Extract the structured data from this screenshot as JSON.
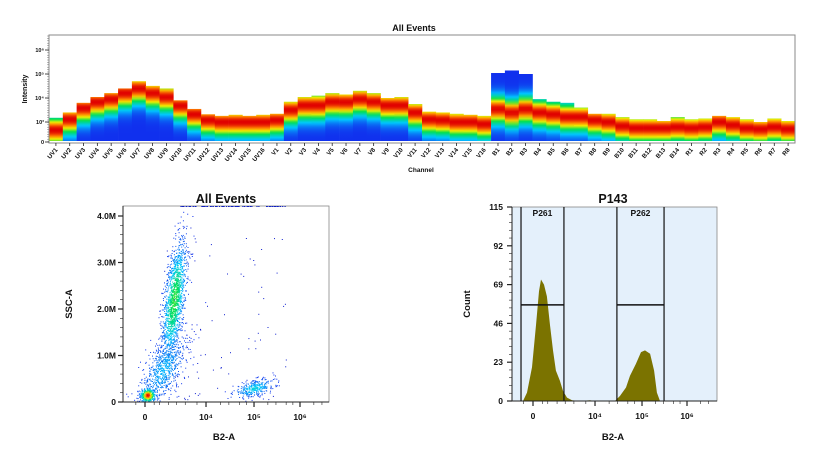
{
  "chart_data": [
    {
      "type": "heatmap",
      "title": "All Events",
      "xlabel": "Channel",
      "ylabel": "Intensity",
      "yscale": "biexponential",
      "ytick_labels": [
        "0",
        "10³",
        "10⁴",
        "10⁵",
        "10⁶"
      ],
      "ytick_values": [
        0,
        1000,
        10000,
        100000,
        1000000
      ],
      "colormap": [
        "#1030ee",
        "#00c8ff",
        "#00e050",
        "#f0f000",
        "#ff8000",
        "#e00000"
      ],
      "channels": [
        "UV1",
        "UV2",
        "UV3",
        "UV4",
        "UV5",
        "UV6",
        "UV7",
        "UV8",
        "UV9",
        "UV10",
        "UV11",
        "UV12",
        "UV13",
        "UV14",
        "UV15",
        "UV16",
        "V1",
        "V2",
        "V3",
        "V4",
        "V5",
        "V6",
        "V7",
        "V8",
        "V9",
        "V10",
        "V11",
        "V12",
        "V13",
        "V14",
        "V15",
        "V16",
        "B1",
        "B2",
        "B3",
        "B4",
        "B5",
        "B6",
        "B7",
        "B8",
        "B9",
        "B10",
        "B11",
        "B12",
        "B13",
        "B14",
        "R1",
        "R2",
        "R3",
        "R4",
        "R5",
        "R6",
        "R7",
        "R8"
      ],
      "max_intensity": [
        1500,
        2500,
        6300,
        11000,
        16000,
        25000,
        50000,
        32000,
        25000,
        8000,
        3500,
        2100,
        1800,
        2000,
        1800,
        2000,
        2200,
        7000,
        11000,
        12500,
        16000,
        14000,
        20000,
        16000,
        10000,
        11000,
        5600,
        2700,
        2500,
        2200,
        2000,
        1800,
        110000,
        140000,
        100000,
        9000,
        7000,
        6300,
        4000,
        2200,
        2200,
        1600,
        1300,
        1300,
        1100,
        1600,
        1300,
        1400,
        1800,
        1600,
        1300,
        1000,
        1400,
        1100
      ],
      "mode_intensity": [
        600,
        1300,
        3800,
        6800,
        9000,
        16000,
        25000,
        16000,
        11000,
        4800,
        2100,
        1200,
        1000,
        1000,
        1000,
        1000,
        1200,
        3200,
        5000,
        5000,
        7000,
        6800,
        9000,
        7000,
        5000,
        5000,
        2500,
        1300,
        1200,
        1000,
        1000,
        900,
        3500,
        2500,
        3500,
        2500,
        2100,
        1650,
        1650,
        1200,
        1000,
        800,
        700,
        700,
        700,
        750,
        700,
        750,
        1000,
        850,
        700,
        650,
        750,
        650
      ]
    },
    {
      "type": "scatter",
      "title": "All Events",
      "xlabel": "B2-A",
      "ylabel": "SSC-A",
      "xscale": "biexponential",
      "xtick_labels": [
        "0",
        "10⁴",
        "10⁵",
        "10⁶"
      ],
      "xtick_values": [
        0,
        10000,
        100000,
        1000000
      ],
      "ytick_labels": [
        "0",
        "1.0M",
        "2.0M",
        "3.0M",
        "4.0M"
      ],
      "ytick_values": [
        0,
        1000000,
        2000000,
        3000000,
        4000000
      ],
      "ylim": [
        0,
        4200000
      ],
      "populations": [
        {
          "b2a": 20,
          "ssc": 150000
        },
        {
          "b2a": 800,
          "ssc": 2200000
        },
        {
          "b2a": 300,
          "ssc": 700000
        },
        {
          "b2a": 100000,
          "ssc": 300000
        }
      ]
    },
    {
      "type": "area",
      "title": "P143",
      "xlabel": "B2-A",
      "ylabel": "Count",
      "xscale": "biexponential",
      "fill_color": "#7b7300",
      "background_color": "#e4f0fb",
      "xtick_labels": [
        "0",
        "10⁴",
        "10⁵",
        "10⁶"
      ],
      "xtick_values": [
        0,
        10000,
        100000,
        1000000
      ],
      "ytick_labels": [
        "0",
        "23",
        "46",
        "69",
        "92",
        "115"
      ],
      "ytick_values": [
        0,
        23,
        46,
        69,
        92,
        115
      ],
      "ylim": [
        0,
        115
      ],
      "points": [
        [
          -110,
          0
        ],
        [
          -56,
          5
        ],
        [
          -8,
          20
        ],
        [
          25,
          45
        ],
        [
          56,
          65
        ],
        [
          81,
          72
        ],
        [
          126,
          69
        ],
        [
          182,
          62
        ],
        [
          254,
          45
        ],
        [
          342,
          30
        ],
        [
          450,
          18
        ],
        [
          641,
          12
        ],
        [
          833,
          6
        ],
        [
          1159,
          2
        ],
        [
          1719,
          0.5
        ],
        [
          3211,
          0
        ],
        [
          6818,
          0.5
        ],
        [
          10000,
          0
        ],
        [
          26500,
          0
        ],
        [
          34000,
          3
        ],
        [
          45600,
          8
        ],
        [
          55500,
          15
        ],
        [
          74000,
          22
        ],
        [
          95000,
          29
        ],
        [
          116600,
          30
        ],
        [
          151000,
          28
        ],
        [
          186000,
          18
        ],
        [
          214000,
          5
        ],
        [
          251000,
          0
        ]
      ],
      "gates": [
        {
          "name": "P261",
          "range": [
            -144,
            900
          ],
          "level": 57
        },
        {
          "name": "P262",
          "range": [
            29300,
            309000
          ],
          "level": 57
        }
      ]
    }
  ]
}
